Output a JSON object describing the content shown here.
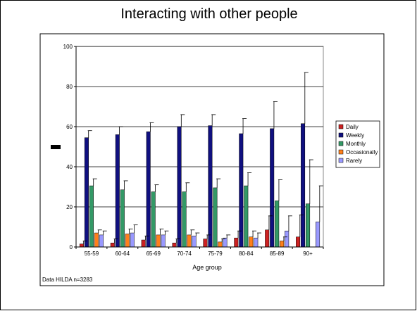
{
  "title": "Interacting with other people",
  "chart_data": {
    "type": "bar",
    "title": "Interacting with other people",
    "xlabel": "Age group",
    "ylabel": "",
    "ylim": [
      0,
      100
    ],
    "yticks": [
      0,
      20,
      40,
      60,
      80,
      100
    ],
    "grid": true,
    "legend_position": "right",
    "categories": [
      "55-59",
      "60-64",
      "65-69",
      "70-74",
      "75-79",
      "80-84",
      "85-89",
      "90+"
    ],
    "series": [
      {
        "name": "Daily",
        "color": "#cc2222",
        "values": [
          1.5,
          2,
          3.5,
          2,
          4,
          4.5,
          8.5,
          5
        ],
        "error_upper": [
          3,
          4,
          5.5,
          4,
          6,
          8,
          15.5,
          16
        ]
      },
      {
        "name": "Weekly",
        "color": "#101080",
        "values": [
          54.5,
          56,
          57.5,
          60,
          60.5,
          56.5,
          59,
          61.5
        ],
        "error_upper": [
          58,
          60,
          62,
          66,
          66,
          64,
          72.5,
          87
        ]
      },
      {
        "name": "Monthly",
        "color": "#339966",
        "values": [
          30.5,
          28.5,
          27.5,
          27.5,
          29.5,
          30.5,
          23,
          21.5
        ],
        "error_upper": [
          34,
          33,
          31,
          32,
          34,
          37,
          33.5,
          43.5
        ]
      },
      {
        "name": "Occasionally",
        "color": "#ff7f1a",
        "values": [
          7,
          6.5,
          6,
          6,
          2.5,
          5,
          3,
          null
        ],
        "error_upper": [
          8.5,
          9,
          9,
          8.5,
          4,
          8,
          5,
          null
        ]
      },
      {
        "name": "Rarely",
        "color": "#9999ff",
        "values": [
          6,
          7,
          6,
          5.5,
          4.5,
          4.5,
          8,
          12.5
        ],
        "error_upper": [
          8,
          11,
          8,
          7,
          6,
          7,
          15.5,
          30.5
        ]
      }
    ],
    "annotation": "Data HILDA n=3283"
  }
}
